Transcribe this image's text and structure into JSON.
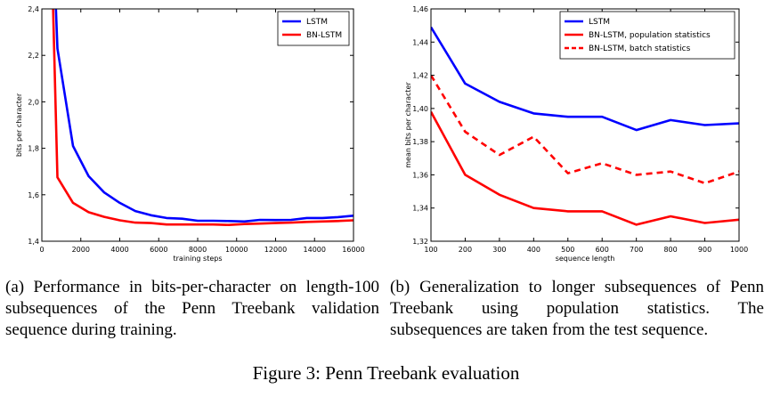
{
  "chart_data": [
    {
      "type": "line",
      "xlabel": "training steps",
      "ylabel": "bits per character",
      "xlim": [
        0,
        16000
      ],
      "ylim": [
        1.4,
        2.4
      ],
      "xticks": [
        0,
        2000,
        4000,
        6000,
        8000,
        10000,
        12000,
        14000,
        16000
      ],
      "yticks": [
        1.4,
        1.6,
        1.8,
        2.0,
        2.2,
        2.4
      ],
      "ytick_labels": [
        "1,4",
        "1,6",
        "1,8",
        "2,0",
        "2,2",
        "2,4"
      ],
      "legend_position": "top-right",
      "series": [
        {
          "name": "LSTM",
          "color": "#0000ff",
          "dash": "solid",
          "x": [
            700,
            800,
            1600,
            2400,
            3200,
            4000,
            4800,
            5600,
            6400,
            7200,
            8000,
            8800,
            9600,
            10400,
            11200,
            12000,
            12800,
            13600,
            14400,
            15200,
            16000
          ],
          "y": [
            2.45,
            2.23,
            1.81,
            1.68,
            1.61,
            1.565,
            1.53,
            1.512,
            1.5,
            1.497,
            1.488,
            1.488,
            1.487,
            1.485,
            1.492,
            1.491,
            1.492,
            1.5,
            1.5,
            1.504,
            1.51
          ]
        },
        {
          "name": "BN-LSTM",
          "color": "#ff0000",
          "dash": "solid",
          "x": [
            560,
            800,
            1600,
            2400,
            3200,
            4000,
            4800,
            5600,
            6400,
            7200,
            8000,
            8800,
            9600,
            10400,
            11200,
            12000,
            12800,
            13600,
            14400,
            15200,
            16000
          ],
          "y": [
            2.45,
            1.675,
            1.565,
            1.525,
            1.505,
            1.49,
            1.48,
            1.478,
            1.472,
            1.472,
            1.472,
            1.472,
            1.47,
            1.474,
            1.476,
            1.478,
            1.48,
            1.483,
            1.485,
            1.487,
            1.49
          ]
        }
      ]
    },
    {
      "type": "line",
      "xlabel": "sequence length",
      "ylabel": "mean bits per character",
      "xlim": [
        100,
        1000
      ],
      "ylim": [
        1.32,
        1.46
      ],
      "xticks": [
        100,
        200,
        300,
        400,
        500,
        600,
        700,
        800,
        900,
        1000
      ],
      "yticks": [
        1.32,
        1.34,
        1.36,
        1.38,
        1.4,
        1.42,
        1.44,
        1.46
      ],
      "ytick_labels": [
        "1,32",
        "1,34",
        "1,36",
        "1,38",
        "1,40",
        "1,42",
        "1,44",
        "1,46"
      ],
      "legend_position": "top-right",
      "series": [
        {
          "name": "LSTM",
          "color": "#0000ff",
          "dash": "solid",
          "x": [
            100,
            200,
            300,
            400,
            500,
            600,
            700,
            800,
            900,
            1000
          ],
          "y": [
            1.449,
            1.415,
            1.404,
            1.397,
            1.395,
            1.395,
            1.387,
            1.393,
            1.39,
            1.391
          ]
        },
        {
          "name": "BN-LSTM, population statistics",
          "color": "#ff0000",
          "dash": "solid",
          "x": [
            100,
            200,
            300,
            400,
            500,
            600,
            700,
            800,
            900,
            1000
          ],
          "y": [
            1.398,
            1.36,
            1.348,
            1.34,
            1.338,
            1.338,
            1.33,
            1.335,
            1.331,
            1.333
          ]
        },
        {
          "name": "BN-LSTM, batch statistics",
          "color": "#ff0000",
          "dash": "dashed",
          "x": [
            100,
            200,
            300,
            400,
            500,
            600,
            700,
            800,
            900,
            1000
          ],
          "y": [
            1.42,
            1.386,
            1.372,
            1.383,
            1.361,
            1.367,
            1.36,
            1.362,
            1.355,
            1.362
          ]
        }
      ]
    }
  ],
  "captions": {
    "a": "(a) Performance in bits-per-character on length-100 subsequences of the Penn Treebank validation sequence during training.",
    "b": "(b) Generalization to longer subsequences of Penn Treebank using population statistics. The subsequences are taken from the test sequence."
  },
  "figure_title": "Figure 3: Penn Treebank evaluation"
}
